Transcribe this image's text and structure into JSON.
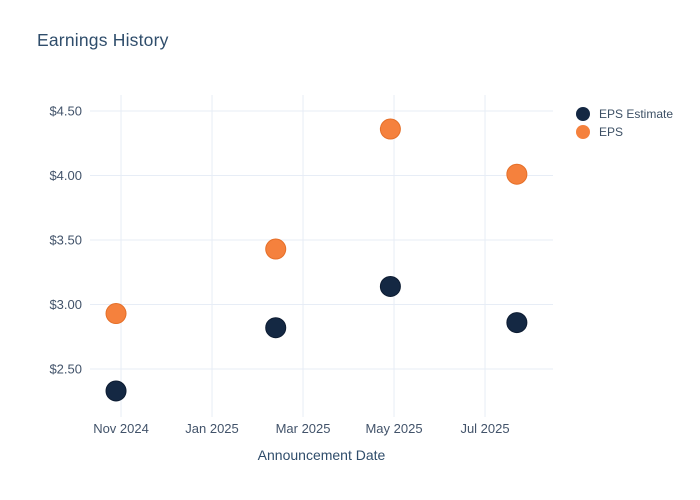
{
  "colors": {
    "background": "#ffffff",
    "title_text": "#2f4d6b",
    "tick_text": "#42536a",
    "grid": "#e7edf6",
    "eps_estimate_marker": "#142843",
    "eps_estimate_stroke": "#0d1c32",
    "eps_marker": "#f5813d",
    "eps_stroke": "#e56f28"
  },
  "chart_data": {
    "type": "scatter",
    "title": "Earnings History",
    "xlabel": "Announcement Date",
    "ylabel": "",
    "grid": true,
    "legend_position": "right",
    "x_unit": "tick-index (0 = Nov 2024, 1 unit = 2 months)",
    "x_tick_positions": [
      0,
      1,
      2,
      3,
      4
    ],
    "x_tick_labels": [
      "Nov 2024",
      "Jan 2025",
      "Mar 2025",
      "May 2025",
      "Jul 2025"
    ],
    "y_tick_values": [
      2.5,
      3.0,
      3.5,
      4.0,
      4.5
    ],
    "y_tick_labels": [
      "$2.50",
      "$3.00",
      "$3.50",
      "$4.00",
      "$4.50"
    ],
    "xlim": [
      -0.341,
      4.747
    ],
    "ylim": [
      2.128,
      4.624
    ],
    "marker_diameter_px": 20,
    "series": [
      {
        "name": "EPS Estimate",
        "color": "#142843",
        "stroke": "#0d1c32",
        "points": [
          {
            "x": -0.055,
            "y": 2.33
          },
          {
            "x": 1.7,
            "y": 2.82
          },
          {
            "x": 2.96,
            "y": 3.14
          },
          {
            "x": 4.35,
            "y": 2.86
          }
        ]
      },
      {
        "name": "EPS",
        "color": "#f5813d",
        "stroke": "#e56f28",
        "points": [
          {
            "x": -0.055,
            "y": 2.93
          },
          {
            "x": 1.7,
            "y": 3.43
          },
          {
            "x": 2.96,
            "y": 4.36
          },
          {
            "x": 4.35,
            "y": 4.01
          }
        ]
      }
    ]
  }
}
